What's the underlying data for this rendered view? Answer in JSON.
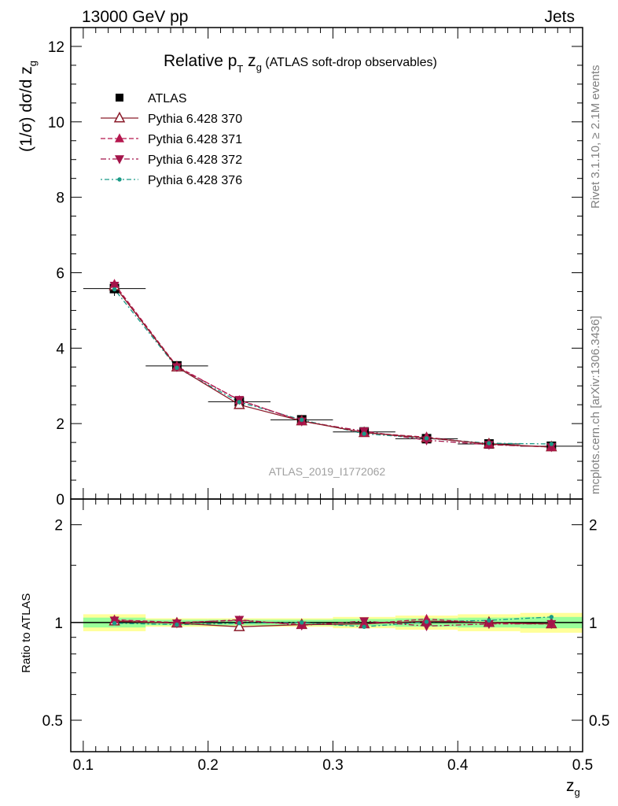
{
  "header": {
    "energy_label": "13000 GeV pp",
    "process_label": "Jets"
  },
  "side_text": {
    "rivet": "Rivet 3.1.10, ≥ 2.1M events",
    "mcplots": "mcplots.cern.ch [arXiv:1306.3436]"
  },
  "watermark": "ATLAS_2019_I1772062",
  "chart_data": {
    "type": "line",
    "title": {
      "pre": "Relative p",
      "sub1": "T",
      "mid": " z",
      "sub2": "g",
      "post": " (ATLAS soft-drop observables)"
    },
    "ylabel": {
      "main": "(1/σ) dσ/d z",
      "sub": "g"
    },
    "xlabel": {
      "main": "z",
      "sub": "g"
    },
    "ratio_ylabel": "Ratio to ATLAS",
    "xlim": [
      0.09,
      0.5
    ],
    "ylim": [
      0,
      12.5
    ],
    "ratio_ylim": [
      0.4,
      2.4
    ],
    "x_ticks": [
      "0.1",
      "0.2",
      "0.3",
      "0.4",
      "0.5"
    ],
    "y_ticks": [
      "0",
      "2",
      "4",
      "6",
      "8",
      "10",
      "12"
    ],
    "ratio_y_ticks": [
      "0.5",
      "1",
      "2"
    ],
    "x": [
      0.125,
      0.175,
      0.225,
      0.275,
      0.325,
      0.375,
      0.425,
      0.475
    ],
    "bin_edges": [
      0.1,
      0.15,
      0.2,
      0.25,
      0.3,
      0.35,
      0.4,
      0.45,
      0.5
    ],
    "data": {
      "name": "ATLAS",
      "values": [
        5.58,
        3.53,
        2.58,
        2.1,
        1.78,
        1.6,
        1.46,
        1.4
      ],
      "band_inner": [
        0.035,
        0.02,
        0.02,
        0.02,
        0.025,
        0.03,
        0.035,
        0.04
      ],
      "band_outer": [
        0.06,
        0.03,
        0.03,
        0.03,
        0.04,
        0.05,
        0.06,
        0.07
      ]
    },
    "series": [
      {
        "name": "Pythia 6.428 370",
        "color": "#8b1c2b",
        "style": "solid",
        "marker": "triangle-open",
        "values": [
          5.65,
          3.5,
          2.5,
          2.07,
          1.76,
          1.62,
          1.46,
          1.38
        ],
        "ratio": [
          1.01,
          0.995,
          0.97,
          0.985,
          0.99,
          1.01,
          1.0,
          0.99
        ]
      },
      {
        "name": "Pythia 6.428 371",
        "color": "#b5174e",
        "style": "dashed",
        "marker": "triangle-up",
        "values": [
          5.7,
          3.52,
          2.62,
          2.07,
          1.76,
          1.64,
          1.45,
          1.38
        ],
        "ratio": [
          1.02,
          1.0,
          1.015,
          0.985,
          0.99,
          1.025,
          0.995,
          0.99
        ]
      },
      {
        "name": "Pythia 6.428 372",
        "color": "#a3144a",
        "style": "dashdot",
        "marker": "triangle-down",
        "values": [
          5.66,
          3.5,
          2.63,
          2.06,
          1.8,
          1.56,
          1.44,
          1.38
        ],
        "ratio": [
          1.015,
          0.995,
          1.02,
          0.98,
          1.01,
          0.975,
          0.99,
          0.99
        ]
      },
      {
        "name": "Pythia 6.428 376",
        "color": "#1a9a86",
        "style": "dotdash",
        "marker": "dot",
        "values": [
          5.56,
          3.48,
          2.57,
          2.1,
          1.73,
          1.61,
          1.48,
          1.46
        ],
        "ratio": [
          0.995,
          0.985,
          0.995,
          1.0,
          0.97,
          1.005,
          1.015,
          1.04
        ]
      }
    ],
    "legend_placement": "top-left",
    "band_colors": {
      "inner": "#99ff99",
      "outer": "#ffff99"
    }
  }
}
